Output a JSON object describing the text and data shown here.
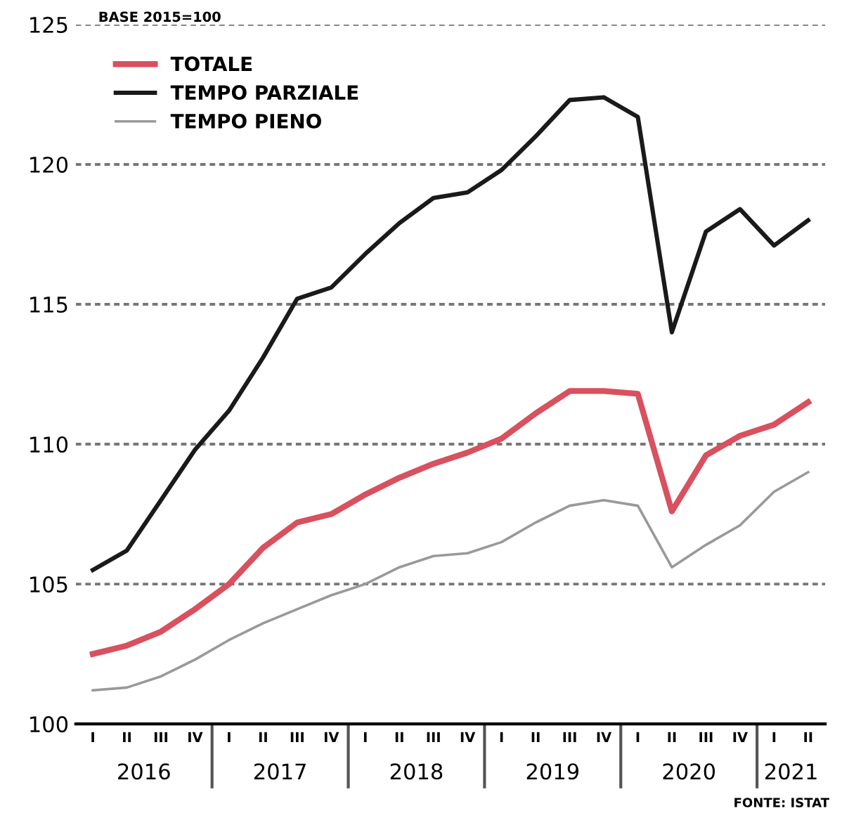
{
  "chart_data": {
    "type": "line",
    "categories": [
      "I",
      "II",
      "III",
      "IV",
      "I",
      "II",
      "III",
      "IV",
      "I",
      "II",
      "III",
      "IV",
      "I",
      "II",
      "III",
      "IV",
      "I",
      "II",
      "III",
      "IV",
      "I",
      "II"
    ],
    "series": [
      {
        "name": "TOTALE",
        "color": "#d9505e",
        "values": [
          102.5,
          102.8,
          103.3,
          104.1,
          105.0,
          106.3,
          107.2,
          107.5,
          108.2,
          108.8,
          109.3,
          109.7,
          110.2,
          111.1,
          111.9,
          111.9,
          111.8,
          107.6,
          109.6,
          110.3,
          110.7,
          111.5
        ]
      },
      {
        "name": "TEMPO PARZIALE",
        "color": "#1a1a1a",
        "values": [
          105.5,
          106.2,
          108.0,
          109.8,
          111.2,
          113.1,
          115.2,
          115.6,
          116.8,
          117.9,
          118.8,
          119.0,
          119.8,
          121.0,
          122.3,
          122.4,
          121.7,
          114.0,
          117.6,
          118.4,
          117.1,
          118.0
        ]
      },
      {
        "name": "TEMPO PIENO",
        "color": "#999999",
        "values": [
          101.2,
          101.3,
          101.7,
          102.3,
          103.0,
          103.6,
          104.1,
          104.6,
          105.0,
          105.6,
          106.0,
          106.1,
          106.5,
          107.2,
          107.8,
          108.0,
          107.8,
          105.6,
          106.4,
          107.1,
          108.3,
          109.0
        ]
      }
    ],
    "ylim": [
      100,
      125
    ],
    "yticks": [
      100,
      105,
      110,
      115,
      120,
      125
    ],
    "grid": "y",
    "legend": "top left",
    "marker": "none",
    "line_style": "solid",
    "annotations": [
      "BASE 2015=100",
      "2016",
      "2017",
      "2018",
      "2019",
      "2020",
      "2021",
      "FONTE: ISTAT"
    ]
  }
}
